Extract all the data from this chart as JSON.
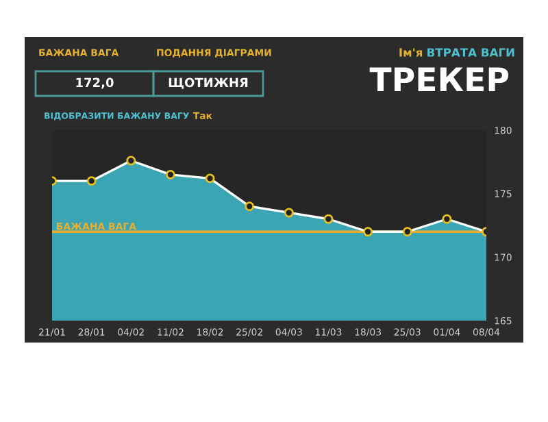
{
  "chart_data": {
    "type": "area",
    "title": "ТРЕКЕР",
    "categories": [
      "21/01",
      "28/01",
      "04/02",
      "11/02",
      "18/02",
      "25/02",
      "04/03",
      "11/03",
      "18/03",
      "25/03",
      "01/04",
      "08/04"
    ],
    "series": [
      {
        "color": "#3fb4c4",
        "values": [
          176.0,
          176.0,
          177.6,
          176.5,
          176.2,
          174.0,
          173.5,
          173.0,
          172.0,
          172.0,
          173.0,
          172.0
        ]
      }
    ],
    "ylim": [
      165,
      180
    ],
    "yticks": [
      165,
      170,
      175,
      180
    ],
    "ref_lines": [
      {
        "axis": "y",
        "value": 172,
        "label": "БАЖАНА ВАГА",
        "color": "#e6b030"
      }
    ],
    "annotations": [
      "БАЖАНА ВАГА",
      "ПОДАННЯ ДІАГРАМИ",
      "172,0",
      "ЩОТИЖНЯ",
      "Ім'я",
      "ВТРАТА ВАГИ",
      "ВІДОБРАЗИТИ БАЖАНУ ВАГУ",
      "Так"
    ],
    "marker": "circle",
    "line_style": "solid",
    "grid": false,
    "legend": false
  }
}
